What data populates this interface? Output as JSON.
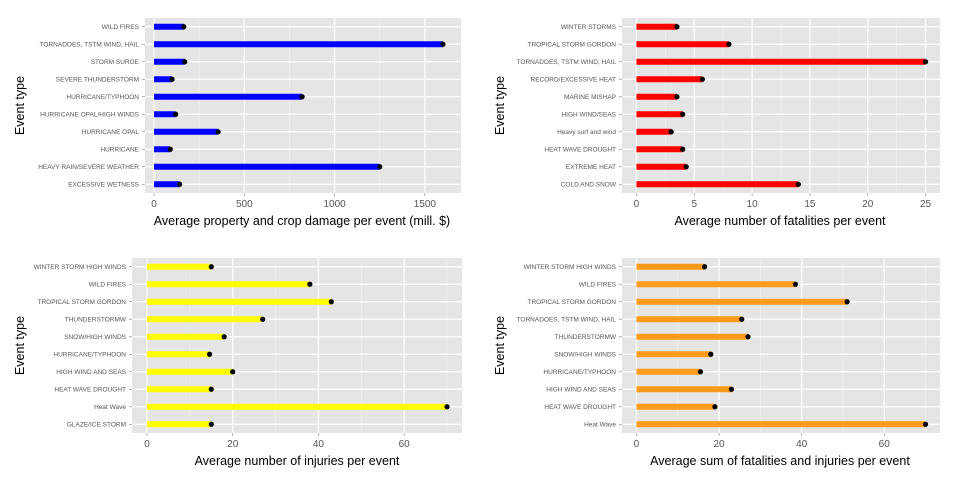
{
  "chart_data": [
    {
      "type": "bar",
      "orientation": "horizontal",
      "color": "#0000ff",
      "categories": [
        "WILD FIRES",
        "TORNADOES, TSTM WIND, HAIL",
        "STORM SURGE",
        "SEVERE THUNDERSTORM",
        "HURRICANE/TYPHOON",
        "HURRICANE OPAL/HIGH WINDS",
        "HURRICANE OPAL",
        "HURRICANE",
        "HEAVY RAIN/SEVERE WEATHER",
        "EXCESSIVE WETNESS"
      ],
      "values": [
        165,
        1600,
        170,
        100,
        820,
        120,
        355,
        90,
        1250,
        142
      ],
      "xlim": [
        -50,
        1700
      ],
      "xticks": [
        0,
        500,
        1000,
        1500
      ],
      "xlabel": "Average property and crop damage per event (mill. $)",
      "ylabel": "Event type",
      "grid": true
    },
    {
      "type": "bar",
      "orientation": "horizontal",
      "color": "#ff0000",
      "categories": [
        "WINTER STORMS",
        "TROPICAL STORM GORDON",
        "TORNADOES, TSTM WIND, HAIL",
        "RECORD/EXCESSIVE HEAT",
        "MARINE MISHAP",
        "HIGH WIND/SEAS",
        "Heavy surf and wind",
        "HEAT WAVE DROUGHT",
        "EXTREME HEAT",
        "COLD AND SNOW"
      ],
      "values": [
        3.5,
        8,
        25,
        5.7,
        3.5,
        4,
        3,
        4,
        4.3,
        14
      ],
      "xlim": [
        -1.25,
        26.25
      ],
      "xticks": [
        0,
        5,
        10,
        15,
        20,
        25
      ],
      "xlabel": "Average number of fatalities per event",
      "ylabel": "Event type",
      "grid": true
    },
    {
      "type": "bar",
      "orientation": "horizontal",
      "color": "#ffff00",
      "categories": [
        "WINTER STORM HIGH WINDS",
        "WILD FIRES",
        "TROPICAL STORM GORDON",
        "THUNDERSTORMW",
        "SNOW/HIGH WINDS",
        "HURRICANE/TYPHOON",
        "HIGH WIND AND SEAS",
        "HEAT WAVE DROUGHT",
        "Heat Wave",
        "GLAZE/ICE STORM"
      ],
      "values": [
        15,
        38,
        43,
        27,
        18,
        14.6,
        20,
        15,
        70,
        15
      ],
      "xlim": [
        -3.5,
        73.5
      ],
      "xticks": [
        0,
        20,
        40,
        60
      ],
      "xlabel": "Average number of injuries per event",
      "ylabel": "Event type",
      "grid": true
    },
    {
      "type": "bar",
      "orientation": "horizontal",
      "color": "#ff9a1a",
      "categories": [
        "WINTER STORM HIGH WINDS",
        "WILD FIRES",
        "TROPICAL STORM GORDON",
        "TORNADOES, TSTM WIND, HAIL",
        "THUNDERSTORMW",
        "SNOW/HIGH WINDS",
        "HURRICANE/TYPHOON",
        "HIGH WIND AND SEAS",
        "HEAT WAVE DROUGHT",
        "Heat Wave"
      ],
      "values": [
        16.5,
        38.5,
        51,
        25.5,
        27,
        18,
        15.5,
        23,
        19,
        70
      ],
      "xlim": [
        -3.5,
        73.5
      ],
      "xticks": [
        0,
        20,
        40,
        60
      ],
      "xlabel": "Average sum of fatalities and injuries per event",
      "ylabel": "Event type",
      "grid": true
    }
  ]
}
